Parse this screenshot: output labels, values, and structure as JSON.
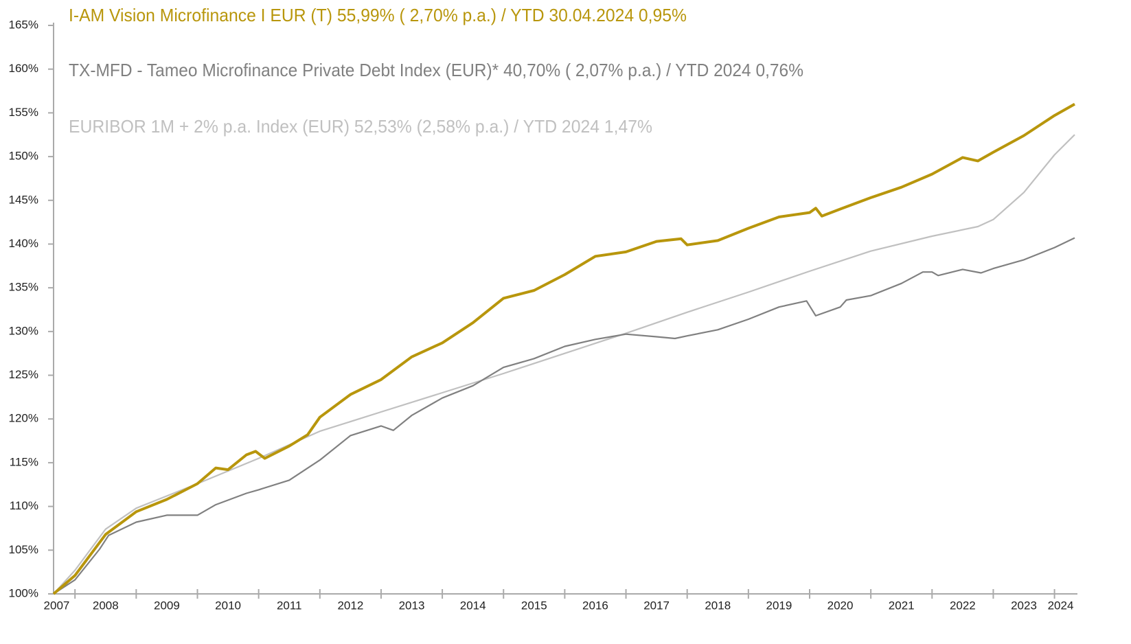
{
  "chart_data": {
    "type": "line",
    "ylim": [
      100,
      165
    ],
    "yticks": [
      {
        "value": 100,
        "label": "100%"
      },
      {
        "value": 105,
        "label": "105%"
      },
      {
        "value": 110,
        "label": "110%"
      },
      {
        "value": 115,
        "label": "115%"
      },
      {
        "value": 120,
        "label": "120%"
      },
      {
        "value": 125,
        "label": "125%"
      },
      {
        "value": 130,
        "label": "130%"
      },
      {
        "value": 135,
        "label": "135%"
      },
      {
        "value": 140,
        "label": "140%"
      },
      {
        "value": 145,
        "label": "145%"
      },
      {
        "value": 150,
        "label": "150%"
      },
      {
        "value": 155,
        "label": "155%"
      },
      {
        "value": 160,
        "label": "160%"
      },
      {
        "value": 165,
        "label": "165%"
      }
    ],
    "xlim": [
      2007.65,
      2024.33
    ],
    "xticks": [
      {
        "value": 2007.7,
        "label": "2007"
      },
      {
        "value": 2008.5,
        "label": "2008"
      },
      {
        "value": 2009.5,
        "label": "2009"
      },
      {
        "value": 2010.5,
        "label": "2010"
      },
      {
        "value": 2011.5,
        "label": "2011"
      },
      {
        "value": 2012.5,
        "label": "2012"
      },
      {
        "value": 2013.5,
        "label": "2013"
      },
      {
        "value": 2014.5,
        "label": "2014"
      },
      {
        "value": 2015.5,
        "label": "2015"
      },
      {
        "value": 2016.5,
        "label": "2016"
      },
      {
        "value": 2017.5,
        "label": "2017"
      },
      {
        "value": 2018.5,
        "label": "2018"
      },
      {
        "value": 2019.5,
        "label": "2019"
      },
      {
        "value": 2020.5,
        "label": "2020"
      },
      {
        "value": 2021.5,
        "label": "2021"
      },
      {
        "value": 2022.5,
        "label": "2022"
      },
      {
        "value": 2023.5,
        "label": "2023"
      },
      {
        "value": 2024.1,
        "label": "2024"
      }
    ],
    "xtick_marks": [
      2008,
      2009,
      2010,
      2011,
      2012,
      2013,
      2014,
      2015,
      2016,
      2017,
      2018,
      2019,
      2020,
      2021,
      2022,
      2023,
      2024
    ],
    "series": [
      {
        "name": "I-AM Vision Microfinance I EUR (T)  55,99% ( 2,70% p.a.) / YTD 30.04.2024  0,95%",
        "color": "#b8960c",
        "width": 4,
        "x": [
          2007.65,
          2008.0,
          2008.5,
          2009.0,
          2009.5,
          2010.0,
          2010.3,
          2010.5,
          2010.8,
          2010.95,
          2011.1,
          2011.5,
          2011.8,
          2012.0,
          2012.5,
          2013.0,
          2013.5,
          2014.0,
          2014.5,
          2015.0,
          2015.5,
          2016.0,
          2016.5,
          2017.0,
          2017.5,
          2017.9,
          2018.0,
          2018.5,
          2019.0,
          2019.5,
          2020.0,
          2020.1,
          2020.2,
          2020.5,
          2021.0,
          2021.5,
          2022.0,
          2022.5,
          2022.75,
          2023.0,
          2023.5,
          2024.0,
          2024.33
        ],
        "values": [
          100,
          102.1,
          106.8,
          109.4,
          110.8,
          112.6,
          114.4,
          114.2,
          115.9,
          116.3,
          115.5,
          116.9,
          118.2,
          120.2,
          122.8,
          124.5,
          127.1,
          128.7,
          131.0,
          133.8,
          134.7,
          136.5,
          138.6,
          139.1,
          140.3,
          140.6,
          139.9,
          140.4,
          141.8,
          143.1,
          143.6,
          144.1,
          143.2,
          144.0,
          145.3,
          146.5,
          148.0,
          149.9,
          149.5,
          150.5,
          152.4,
          154.7,
          156.0
        ]
      },
      {
        "name": "TX-MFD - Tameo Microfinance Private Debt Index (EUR)*  40,70% ( 2,07% p.a.) / YTD 2024  0,76%",
        "color": "#808080",
        "width": 2.2,
        "x": [
          2007.65,
          2008.0,
          2008.4,
          2008.55,
          2009.0,
          2009.5,
          2010.0,
          2010.3,
          2010.8,
          2011.0,
          2011.5,
          2012.0,
          2012.5,
          2013.0,
          2013.2,
          2013.5,
          2014.0,
          2014.5,
          2015.0,
          2015.5,
          2016.0,
          2016.5,
          2017.0,
          2017.5,
          2017.8,
          2018.0,
          2018.5,
          2019.0,
          2019.5,
          2019.95,
          2020.1,
          2020.5,
          2020.6,
          2021.0,
          2021.5,
          2021.85,
          2022.0,
          2022.1,
          2022.5,
          2022.8,
          2023.0,
          2023.5,
          2024.0,
          2024.33
        ],
        "values": [
          100,
          101.6,
          105.1,
          106.7,
          108.2,
          109.0,
          109.0,
          110.2,
          111.5,
          111.9,
          113.0,
          115.3,
          118.1,
          119.2,
          118.7,
          120.4,
          122.4,
          123.8,
          125.9,
          126.9,
          128.3,
          129.1,
          129.7,
          129.4,
          129.2,
          129.5,
          130.2,
          131.4,
          132.8,
          133.5,
          131.8,
          132.8,
          133.6,
          134.1,
          135.5,
          136.8,
          136.8,
          136.4,
          137.1,
          136.7,
          137.2,
          138.2,
          139.6,
          140.7
        ]
      },
      {
        "name": "EURIBOR 1M + 2% p.a.  Index (EUR) 52,53%  (2,58% p.a.) / YTD 2024  1,47%",
        "color": "#c0c0c0",
        "width": 2.2,
        "x": [
          2007.65,
          2008.0,
          2008.5,
          2009.0,
          2010.0,
          2011.0,
          2012.0,
          2013.0,
          2014.0,
          2015.0,
          2016.0,
          2017.0,
          2018.0,
          2019.0,
          2020.0,
          2021.0,
          2022.0,
          2022.75,
          2023.0,
          2023.5,
          2024.0,
          2024.33
        ],
        "values": [
          100,
          102.7,
          107.4,
          109.8,
          112.6,
          115.5,
          118.6,
          120.8,
          123.0,
          125.2,
          127.5,
          129.8,
          132.2,
          134.5,
          136.9,
          139.2,
          140.9,
          142.0,
          142.8,
          145.9,
          150.2,
          152.5
        ]
      }
    ]
  }
}
